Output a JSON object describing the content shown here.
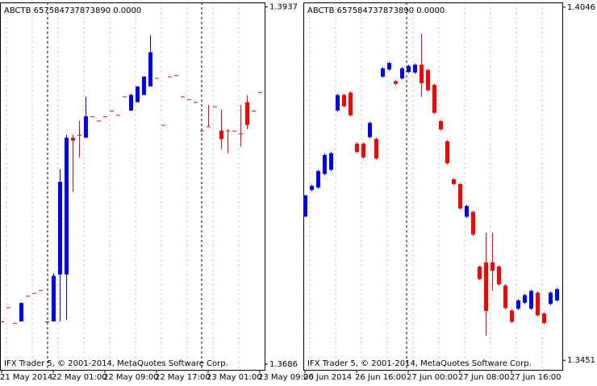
{
  "chart_data": [
    {
      "type": "candlestick",
      "title": "ABCTB 657584737873890 0.0000",
      "footer": "IFX Trader 5, © 2001-2014, MetaQuotes Software Corp.",
      "up_color": "#0000ff",
      "down_color": "#ff0000",
      "open": [
        1.3716,
        1.3726,
        1.3715,
        1.3716,
        1.3734,
        1.3736,
        1.3738,
        1.3716,
        1.3716,
        1.3749,
        1.3749,
        1.3845,
        1.3847,
        1.3845,
        1.386,
        1.3857,
        1.386,
        1.3864,
        1.3861,
        1.3874,
        1.3864,
        1.387,
        1.3875,
        1.3881,
        1.3887,
        1.3854,
        1.3888,
        1.3889,
        1.3874,
        1.3872,
        1.387,
        1.385,
        1.3853,
        1.3867,
        1.385,
        1.385,
        1.385,
        1.3848,
        1.387,
        1.3864,
        1.3877
      ],
      "high": [
        1.3716,
        1.3726,
        1.3715,
        1.3729,
        1.3734,
        1.3736,
        1.3738,
        1.3716,
        1.375,
        1.3823,
        1.3847,
        1.3847,
        1.3857,
        1.3874,
        1.386,
        1.3857,
        1.386,
        1.3864,
        1.3861,
        1.3874,
        1.3876,
        1.3881,
        1.3888,
        1.3917,
        1.3887,
        1.3854,
        1.3888,
        1.3889,
        1.3874,
        1.3872,
        1.387,
        1.385,
        1.3868,
        1.3867,
        1.3865,
        1.3851,
        1.385,
        1.3868,
        1.3875,
        1.3864,
        1.3877
      ],
      "low": [
        1.3716,
        1.3726,
        1.3715,
        1.3716,
        1.3734,
        1.3736,
        1.3738,
        1.3716,
        1.3716,
        1.3716,
        1.3717,
        1.3807,
        1.3831,
        1.3845,
        1.386,
        1.3857,
        1.386,
        1.3864,
        1.3861,
        1.3874,
        1.3864,
        1.387,
        1.3875,
        1.3881,
        1.3887,
        1.3854,
        1.3888,
        1.3889,
        1.3874,
        1.3872,
        1.387,
        1.385,
        1.3853,
        1.3867,
        1.3837,
        1.3834,
        1.385,
        1.3839,
        1.3851,
        1.3864,
        1.3877
      ],
      "close": [
        1.3716,
        1.3726,
        1.3715,
        1.3729,
        1.3734,
        1.3736,
        1.3738,
        1.3716,
        1.3748,
        1.3814,
        1.3845,
        1.3843,
        1.3847,
        1.386,
        1.386,
        1.3857,
        1.386,
        1.3864,
        1.3861,
        1.3874,
        1.3875,
        1.3881,
        1.3888,
        1.3905,
        1.3887,
        1.3854,
        1.3888,
        1.3889,
        1.3874,
        1.3872,
        1.387,
        1.385,
        1.3853,
        1.3867,
        1.3844,
        1.385,
        1.385,
        1.3848,
        1.3854,
        1.3864,
        1.3877
      ],
      "xlim": [
        -0.25,
        40.75
      ],
      "xticks": [
        {
          "value": 0,
          "label": "21 May 2014"
        },
        {
          "value": 8,
          "label": "22 May 01:00"
        },
        {
          "value": 16,
          "label": "22 May 09:00"
        },
        {
          "value": 24,
          "label": "22 May 17:00"
        },
        {
          "value": 32,
          "label": "23 May 01:00"
        },
        {
          "value": 40,
          "label": "23 May 09:00"
        }
      ],
      "ylim": [
        1.3682,
        1.394
      ],
      "yticks": [
        1.3937,
        1.3686
      ]
    },
    {
      "type": "candlestick",
      "title": "ABCTB 657584737873890 0.0000",
      "footer": "IFX Trader 5, © 2001-2014, MetaQuotes Software Corp.",
      "up_color": "#0000ff",
      "down_color": "#ff0000",
      "open": [
        1.3693,
        1.3738,
        1.3742,
        1.3765,
        1.3772,
        1.3872,
        1.3898,
        1.3902,
        1.3816,
        1.3816,
        1.3827,
        1.3824,
        1.3929,
        1.3941,
        1.3921,
        1.3926,
        1.3937,
        1.3936,
        1.3949,
        1.394,
        1.3915,
        1.3854,
        1.382,
        1.3756,
        1.3748,
        1.3693,
        1.3701,
        1.3609,
        1.3616,
        1.3616,
        1.3609,
        1.3577,
        1.3535,
        1.3538,
        1.3548,
        1.3538,
        1.3565,
        1.353,
        1.3546,
        1.3552
      ],
      "high": [
        1.3729,
        1.3747,
        1.3772,
        1.38,
        1.3802,
        1.39,
        1.39,
        1.3904,
        1.3818,
        1.3818,
        1.3853,
        1.3826,
        1.3945,
        1.3954,
        1.3923,
        1.3945,
        1.3949,
        1.3951,
        1.4001,
        1.3942,
        1.3917,
        1.3856,
        1.3822,
        1.3758,
        1.375,
        1.3713,
        1.3703,
        1.3611,
        1.3666,
        1.3666,
        1.3611,
        1.3579,
        1.3537,
        1.3554,
        1.3563,
        1.357,
        1.3567,
        1.3532,
        1.3567,
        1.3573
      ],
      "low": [
        1.3693,
        1.3736,
        1.374,
        1.3763,
        1.377,
        1.387,
        1.3877,
        1.3862,
        1.38,
        1.3791,
        1.3825,
        1.3789,
        1.3927,
        1.3939,
        1.3915,
        1.3924,
        1.3935,
        1.3934,
        1.3895,
        1.3904,
        1.3866,
        1.3838,
        1.3781,
        1.3746,
        1.3705,
        1.3691,
        1.3661,
        1.3586,
        1.3493,
        1.3568,
        1.3577,
        1.3537,
        1.3514,
        1.3536,
        1.3546,
        1.3536,
        1.3525,
        1.3512,
        1.3544,
        1.355
      ],
      "close": [
        1.3729,
        1.3745,
        1.377,
        1.3797,
        1.38,
        1.3898,
        1.3879,
        1.3864,
        1.3802,
        1.3793,
        1.3851,
        1.3791,
        1.3943,
        1.3952,
        1.3917,
        1.3943,
        1.3947,
        1.3949,
        1.3918,
        1.3906,
        1.3868,
        1.384,
        1.3783,
        1.3748,
        1.3707,
        1.3711,
        1.3663,
        1.3588,
        1.3534,
        1.3602,
        1.3579,
        1.3539,
        1.3516,
        1.3552,
        1.3561,
        1.3568,
        1.3527,
        1.3514,
        1.3565,
        1.3571
      ],
      "xlim": [
        -0.25,
        39.875
      ],
      "xticks": [
        {
          "value": 0,
          "label": "26 Jun 2014"
        },
        {
          "value": 8,
          "label": "26 Jun 16:00"
        },
        {
          "value": 16,
          "label": "27 Jun 00:00"
        },
        {
          "value": 24,
          "label": "27 Jun 08:00"
        },
        {
          "value": 32,
          "label": "27 Jun 16:00"
        }
      ],
      "ylim": [
        1.3435,
        1.4054
      ],
      "yticks": [
        1.4046,
        1.3451
      ]
    }
  ]
}
